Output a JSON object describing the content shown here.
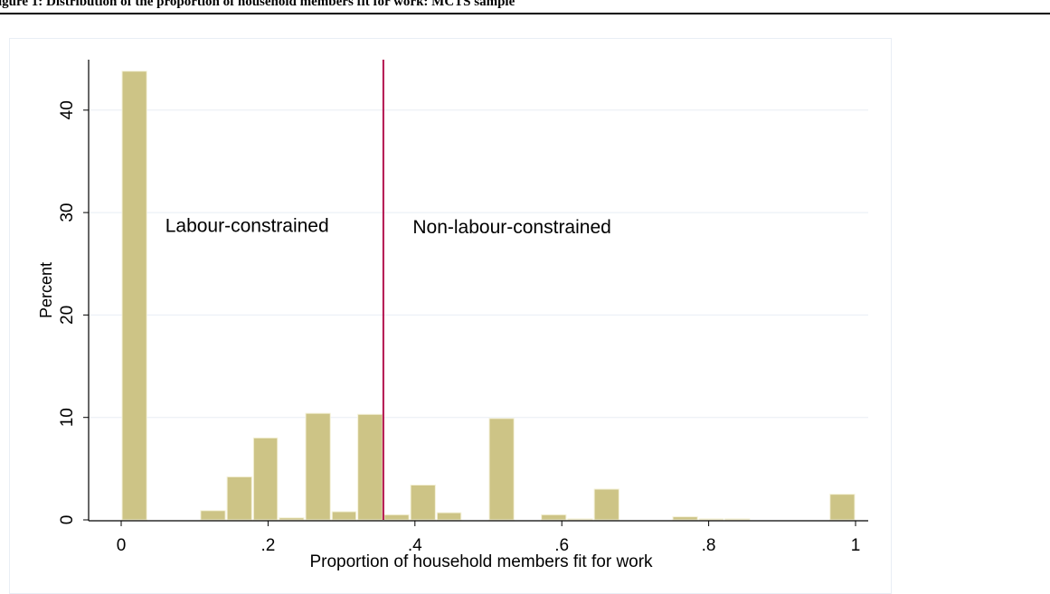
{
  "caption": {
    "text": "igure 1: Distribution of the proportion of household members fit for work: MCTS sample"
  },
  "chart_data": {
    "type": "bar",
    "title": "",
    "xlabel": "Proportion of household members fit for work",
    "ylabel": "Percent",
    "xlim": [
      0,
      1
    ],
    "ylim": [
      0,
      45
    ],
    "x_ticks": [
      0,
      0.2,
      0.4,
      0.6,
      0.8,
      1
    ],
    "x_tick_labels": [
      "0",
      ".2",
      ".4",
      ".6",
      ".8",
      "1"
    ],
    "y_ticks": [
      0,
      10,
      20,
      30,
      40
    ],
    "y_tick_labels": [
      "0",
      "10",
      "20",
      "30",
      "40"
    ],
    "grid": true,
    "bar_color": "#cdc486",
    "bar_edge_color": "#f4f1d8",
    "bins": [
      {
        "x0": 0.0,
        "x1": 0.036,
        "value": 43.8
      },
      {
        "x0": 0.107,
        "x1": 0.143,
        "value": 0.9
      },
      {
        "x0": 0.143,
        "x1": 0.179,
        "value": 4.2
      },
      {
        "x0": 0.179,
        "x1": 0.214,
        "value": 8.0
      },
      {
        "x0": 0.214,
        "x1": 0.25,
        "value": 0.2
      },
      {
        "x0": 0.25,
        "x1": 0.286,
        "value": 10.4
      },
      {
        "x0": 0.286,
        "x1": 0.321,
        "value": 0.8
      },
      {
        "x0": 0.321,
        "x1": 0.357,
        "value": 10.3
      },
      {
        "x0": 0.357,
        "x1": 0.393,
        "value": 0.5
      },
      {
        "x0": 0.393,
        "x1": 0.429,
        "value": 3.4
      },
      {
        "x0": 0.429,
        "x1": 0.464,
        "value": 0.7
      },
      {
        "x0": 0.5,
        "x1": 0.536,
        "value": 9.9
      },
      {
        "x0": 0.571,
        "x1": 0.607,
        "value": 0.5
      },
      {
        "x0": 0.607,
        "x1": 0.643,
        "value": 0.1
      },
      {
        "x0": 0.643,
        "x1": 0.679,
        "value": 3.0
      },
      {
        "x0": 0.75,
        "x1": 0.786,
        "value": 0.3
      },
      {
        "x0": 0.786,
        "x1": 0.821,
        "value": 0.1
      },
      {
        "x0": 0.821,
        "x1": 0.857,
        "value": 0.1
      },
      {
        "x0": 0.964,
        "x1": 1.0,
        "value": 2.5
      }
    ],
    "threshold": {
      "x": 0.357,
      "color": "#b3124d"
    },
    "annotations": [
      {
        "text": "Labour-constrained",
        "x": 0.06,
        "y": 28.1
      },
      {
        "text": "Non-labour-constrained",
        "x": 0.397,
        "y": 28.0
      }
    ]
  }
}
